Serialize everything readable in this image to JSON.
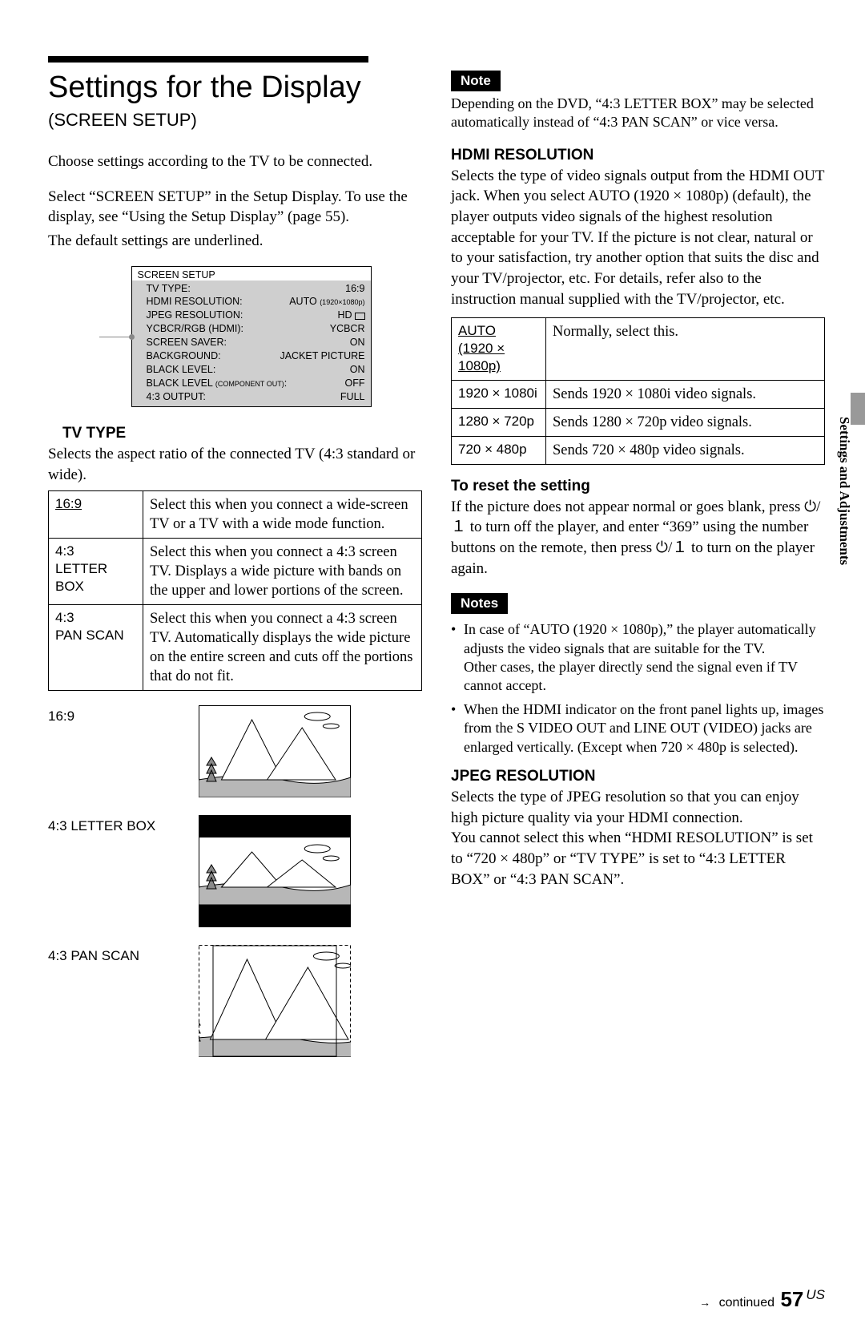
{
  "mainTitle": "Settings for the Display",
  "subtitle": "(SCREEN SETUP)",
  "intro1": "Choose settings according to the TV to be connected.",
  "intro2": "Select “SCREEN SETUP” in the Setup Display. To use the display, see “Using the Setup Display” (page 55).",
  "intro3": "The default settings are underlined.",
  "menu": {
    "title": "SCREEN SETUP",
    "rows": [
      {
        "k": "TV TYPE:",
        "v": "16:9"
      },
      {
        "k": "HDMI RESOLUTION:",
        "v": "AUTO ",
        "suffix": "(1920×1080p)"
      },
      {
        "k": "JPEG RESOLUTION:",
        "v": "HD",
        "tvicon": true
      },
      {
        "k": "YCBCR/RGB (HDMI):",
        "v": "YCBCR"
      },
      {
        "k": "SCREEN SAVER:",
        "v": "ON"
      },
      {
        "k": "BACKGROUND:",
        "v": "JACKET PICTURE"
      },
      {
        "k": "BLACK LEVEL:",
        "v": "ON"
      },
      {
        "k": "BLACK LEVEL ",
        "ksuffix": "(COMPONENT OUT)",
        "kend": ":",
        "v": "OFF"
      },
      {
        "k": "4:3 OUTPUT:",
        "v": "FULL"
      }
    ]
  },
  "tvType": {
    "head": "TV TYPE",
    "desc": "Selects the aspect ratio of the connected TV (4:3 standard or wide).",
    "rows": [
      {
        "k": "16:9",
        "ul": true,
        "v": "Select this when you connect a wide-screen TV or a TV with a wide mode function."
      },
      {
        "k": "4:3 LETTER BOX",
        "v": "Select this when you connect a 4:3 screen TV. Displays a wide picture with bands on the upper and lower portions of the screen."
      },
      {
        "k": "4:3 PAN SCAN",
        "v": "Select this when you connect a 4:3 screen TV. Automatically displays the wide picture on the entire screen and cuts off the portions that do not fit."
      }
    ]
  },
  "illus": [
    {
      "label": "16:9",
      "mode": "wide"
    },
    {
      "label": "4:3 LETTER BOX",
      "mode": "letterbox"
    },
    {
      "label": "4:3 PAN SCAN",
      "mode": "panscan"
    }
  ],
  "note1Label": "Note",
  "note1": "Depending on the DVD, “4:3 LETTER BOX” may be selected automatically instead of “4:3 PAN SCAN” or vice versa.",
  "hdmi": {
    "head": "HDMI RESOLUTION",
    "desc": "Selects the type of video signals output from the HDMI OUT jack. When you select AUTO (1920 × 1080p) (default), the player outputs video signals of the highest resolution acceptable for your TV. If the picture is not clear, natural or to your satisfaction, try another option that suits the disc and your TV/projector, etc. For details, refer also to the instruction manual supplied with the TV/projector, etc.",
    "rows": [
      {
        "k": "AUTO (1920 × 1080p)",
        "ul": true,
        "v": "Normally, select this."
      },
      {
        "k": "1920 × 1080i",
        "v": "Sends 1920 × 1080i video signals."
      },
      {
        "k": "1280 × 720p",
        "v": "Sends 1280 × 720p video signals."
      },
      {
        "k": "720 × 480p",
        "v": "Sends 720 × 480p video signals."
      }
    ]
  },
  "resetHead": "To reset the setting",
  "resetBody": "If the picture does not appear normal or goes blank, press ⏻/１ to turn off the player, and enter “369” using the number buttons on the remote, then press ⏻/１ to turn on the player again.",
  "notes2Label": "Notes",
  "notes2": [
    "In case of “AUTO (1920 × 1080p),” the player automatically adjusts the video signals that are suitable for the TV.\nOther cases, the player directly send the signal even if TV cannot accept.",
    "When the HDMI indicator on the front panel lights up, images from the S VIDEO OUT and LINE OUT (VIDEO) jacks are enlarged vertically. (Except when 720 × 480p is selected)."
  ],
  "jpeg": {
    "head": "JPEG RESOLUTION",
    "desc": "Selects the type of JPEG resolution so that you can enjoy high picture quality via your HDMI connection.\nYou cannot select this when “HDMI RESOLUTION” is set to “720 × 480p” or “TV TYPE” is set to “4:3 LETTER BOX” or “4:3 PAN SCAN”."
  },
  "sideTab": "Settings and Adjustments",
  "footer": {
    "cont": "continued",
    "page": "57",
    "region": "US"
  }
}
